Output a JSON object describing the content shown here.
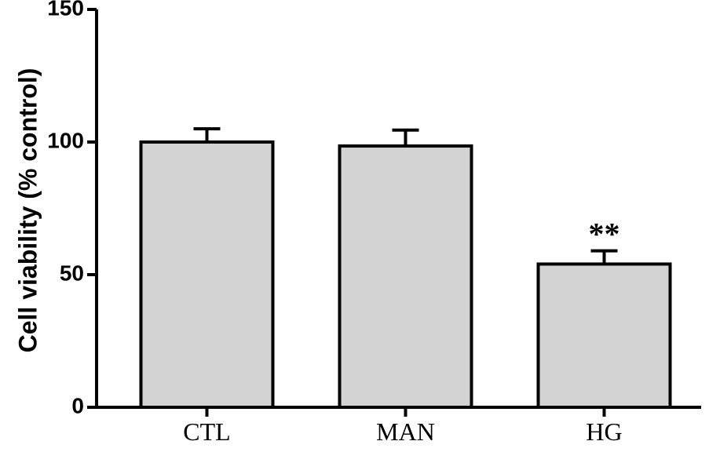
{
  "chart_data": {
    "type": "bar",
    "title": "",
    "xlabel": "",
    "ylabel": "Cell viability (% control)",
    "ylim": [
      0,
      150
    ],
    "yticks": [
      0,
      50,
      100,
      150
    ],
    "categories": [
      "CTL",
      "MAN",
      "HG"
    ],
    "values": [
      100,
      98.5,
      54
    ],
    "errors": [
      5,
      6,
      5
    ],
    "annotations": [
      {
        "category": "HG",
        "text": "**"
      }
    ],
    "grid": false,
    "legend": "none",
    "colors": {
      "bar_fill": "#d3d3d3",
      "bar_stroke": "#000000",
      "axis": "#000000"
    }
  }
}
